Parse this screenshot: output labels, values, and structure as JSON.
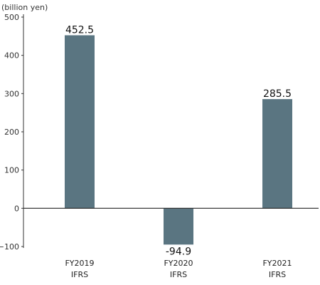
{
  "chart_data": {
    "type": "bar",
    "unit_label": "(billion yen)",
    "categories": [
      "FY2019",
      "FY2020",
      "FY2021"
    ],
    "category_sublabels": [
      "IFRS",
      "IFRS",
      "IFRS"
    ],
    "values": [
      452.5,
      -94.9,
      285.5
    ],
    "value_labels": [
      "452.5",
      "-94.9",
      "285.5"
    ],
    "yticks": [
      -100,
      0,
      100,
      200,
      300,
      400,
      500
    ],
    "ytick_labels": [
      "−100",
      "0",
      "100",
      "200",
      "300",
      "400",
      "500"
    ],
    "ylim": [
      -100,
      500
    ],
    "bar_color": "#5a7581",
    "grid": false,
    "legend": "none"
  }
}
